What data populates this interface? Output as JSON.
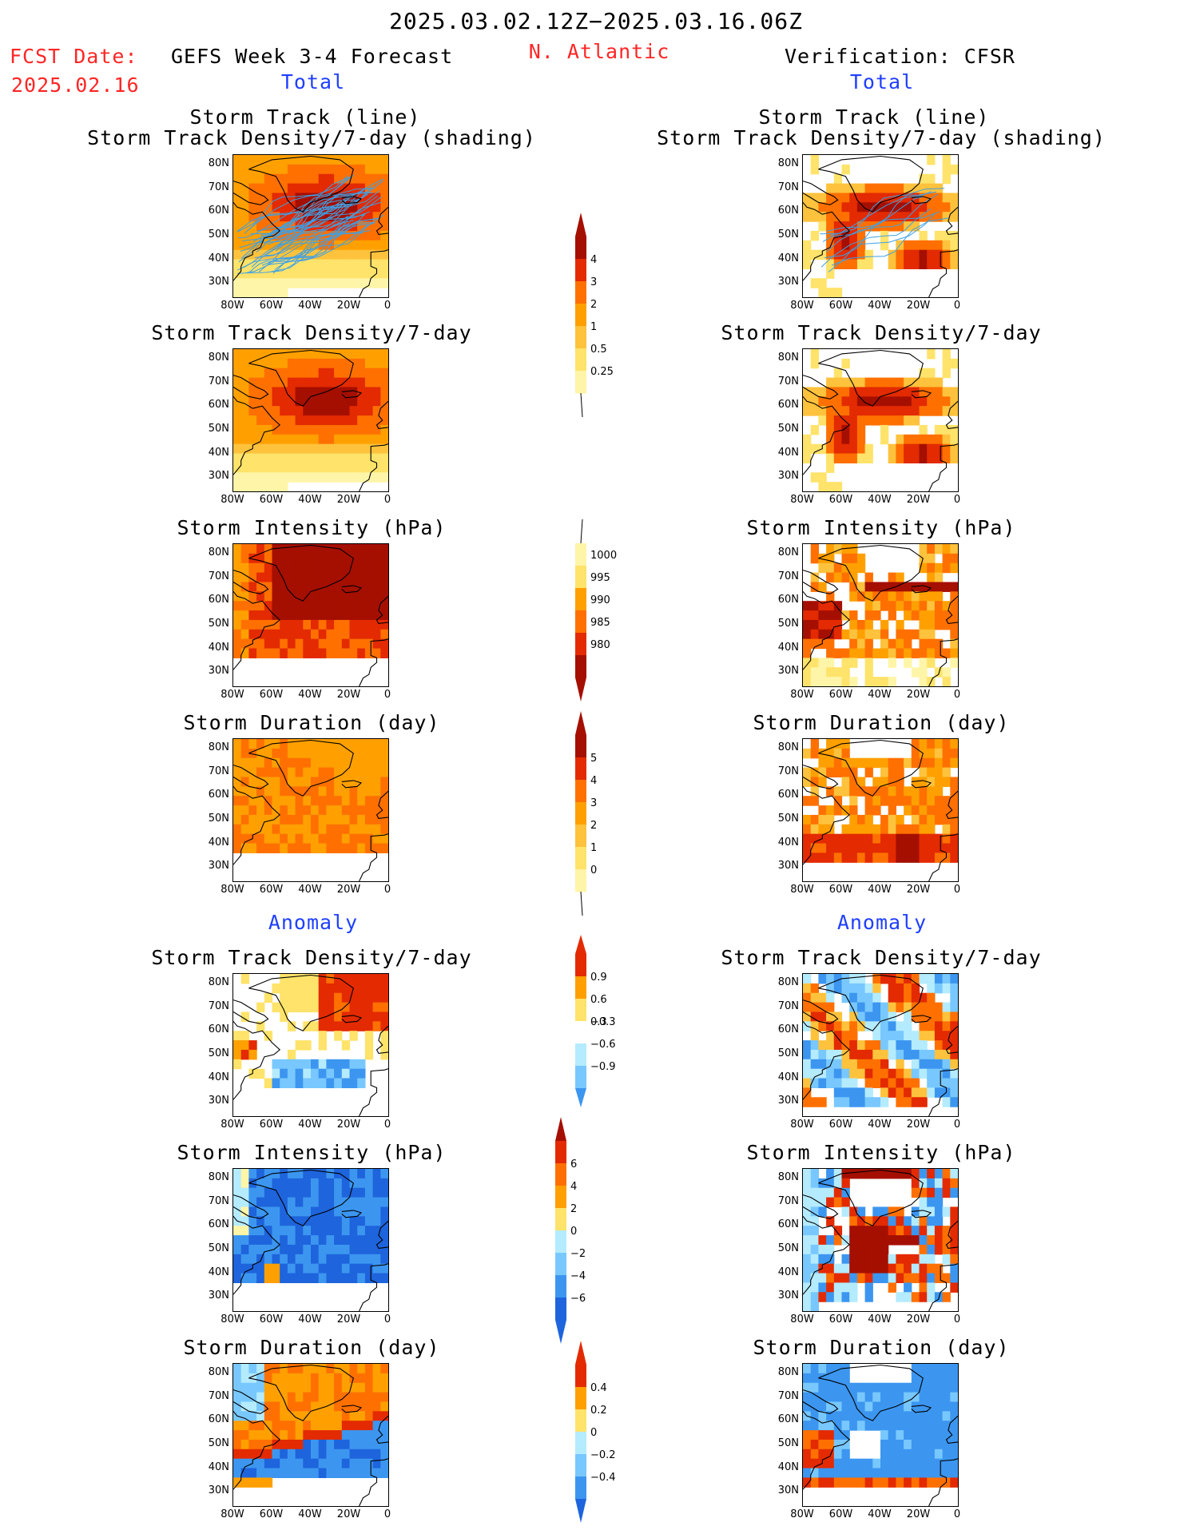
{
  "header": {
    "period": "2025.03.02.12Z−2025.03.16.06Z",
    "fcst_label": "FCST Date:",
    "fcst_date": "2025.02.16",
    "product": "GEFS Week 3-4 Forecast",
    "region": "N. Atlantic",
    "verification": "Verification: CFSR",
    "left_section": "Total",
    "right_section": "Total",
    "left_anomaly": "Anomaly",
    "right_anomaly": "Anomaly"
  },
  "axes": {
    "lat_ticks": [
      "80N",
      "70N",
      "60N",
      "50N",
      "40N",
      "30N"
    ],
    "lon_ticks": [
      "80W",
      "60W",
      "40W",
      "20W",
      "0"
    ]
  },
  "panel_titles": {
    "track_line": "Storm Track (line)",
    "track_density_shading": "Storm Track Density/7-day (shading)",
    "track_density": "Storm Track Density/7-day",
    "intensity": "Storm Intensity (hPa)",
    "duration": "Storm Duration (day)"
  },
  "colors": {
    "lightyellow": "#fff5a8",
    "yellow": "#ffe36a",
    "lightorange": "#ffc23c",
    "orange": "#ffa000",
    "darkorange": "#ff7000",
    "red": "#e32a00",
    "darkred": "#a50f00",
    "lightblue": "#b4ebff",
    "midblue": "#78c8ff",
    "blue": "#3c96f0",
    "darkblue": "#1e64dc",
    "track": "#3ca0e6"
  },
  "chart_data": [
    {
      "type": "heatmap",
      "id": "density_colorbar",
      "levels": [
        "0.25",
        "0.5",
        "1",
        "2",
        "3",
        "4"
      ]
    },
    {
      "type": "heatmap",
      "id": "intensity_colorbar",
      "levels": [
        "1000",
        "995",
        "990",
        "985",
        "980"
      ]
    },
    {
      "type": "heatmap",
      "id": "duration_colorbar",
      "levels": [
        "0",
        "1",
        "2",
        "3",
        "4",
        "5"
      ]
    },
    {
      "type": "heatmap",
      "id": "density_anom_colorbar",
      "levels": [
        "0.9",
        "0.6",
        "0.3",
        "−0.3",
        "−0.6",
        "−0.9"
      ]
    },
    {
      "type": "heatmap",
      "id": "intensity_anom_colorbar",
      "levels": [
        "6",
        "4",
        "2",
        "0",
        "−2",
        "−4",
        "−6"
      ]
    },
    {
      "type": "heatmap",
      "id": "duration_anom_colorbar",
      "levels": [
        "0.4",
        "0.2",
        "0",
        "−0.2",
        "−0.4"
      ]
    }
  ]
}
